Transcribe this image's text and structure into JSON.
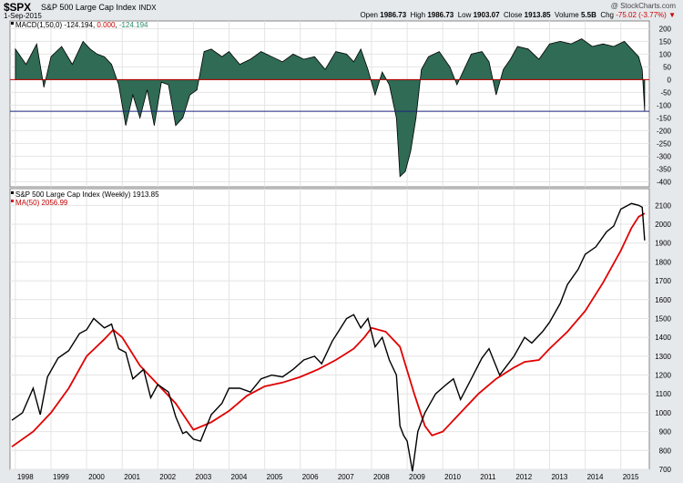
{
  "header": {
    "symbol": "$SPX",
    "name": "S&P 500 Large Cap Index",
    "exchange": "INDX",
    "date": "1-Sep-2015",
    "brand": "@ StockCharts.com",
    "open_label": "Open",
    "open": "1986.73",
    "high_label": "High",
    "high": "1986.73",
    "low_label": "Low",
    "low": "1903.07",
    "close_label": "Close",
    "close": "1913.85",
    "volume_label": "Volume",
    "volume": "5.5B",
    "chg_label": "Chg",
    "chg": "-75.02 (-3.77%)",
    "chg_arrow": "▼"
  },
  "colors": {
    "macd_fill": "#2f6b55",
    "price_line": "#000000",
    "ma_line": "#e00000",
    "zero_line": "#c00000",
    "signal_line": "#1a237e",
    "macd_value": "#c00000",
    "hist_value": "#2e8b6b"
  },
  "chart_data": [
    {
      "type": "area",
      "panel": "MACD",
      "legend": {
        "label": "MACD(1,50,0)",
        "value1": "-124.194",
        "value2": "0.000",
        "value3": "-124.194"
      },
      "ylim": [
        -420,
        230
      ],
      "yticks": [
        200,
        150,
        100,
        50,
        0,
        -50,
        -100,
        -150,
        -200,
        -250,
        -300,
        -350,
        -400
      ],
      "reference_lines": [
        0,
        -124.194
      ],
      "series": [
        {
          "name": "MACD(1,50,0)",
          "x": [
            1998.0,
            1998.3,
            1998.6,
            1998.8,
            1999.0,
            1999.3,
            1999.6,
            1999.9,
            2000.1,
            2000.3,
            2000.5,
            2000.7,
            2000.9,
            2001.1,
            2001.3,
            2001.5,
            2001.7,
            2001.9,
            2002.1,
            2002.3,
            2002.5,
            2002.7,
            2002.9,
            2003.1,
            2003.3,
            2003.5,
            2003.8,
            2004.0,
            2004.3,
            2004.6,
            2004.9,
            2005.2,
            2005.5,
            2005.8,
            2006.1,
            2006.4,
            2006.7,
            2007.0,
            2007.3,
            2007.5,
            2007.7,
            2007.9,
            2008.1,
            2008.3,
            2008.5,
            2008.7,
            2008.8,
            2008.95,
            2009.1,
            2009.25,
            2009.4,
            2009.6,
            2009.9,
            2010.2,
            2010.4,
            2010.6,
            2010.8,
            2011.1,
            2011.3,
            2011.5,
            2011.7,
            2011.9,
            2012.1,
            2012.4,
            2012.7,
            2013.0,
            2013.3,
            2013.6,
            2013.9,
            2014.2,
            2014.5,
            2014.8,
            2015.1,
            2015.3,
            2015.5,
            2015.6,
            2015.67
          ],
          "values": [
            120,
            60,
            140,
            -30,
            90,
            130,
            60,
            150,
            120,
            100,
            90,
            60,
            -20,
            -180,
            -60,
            -150,
            -40,
            -180,
            -10,
            -20,
            -180,
            -150,
            -60,
            -40,
            110,
            120,
            90,
            110,
            60,
            80,
            110,
            90,
            70,
            100,
            80,
            90,
            40,
            110,
            100,
            70,
            120,
            40,
            -60,
            30,
            -20,
            -150,
            -380,
            -360,
            -280,
            -150,
            40,
            90,
            110,
            50,
            -20,
            40,
            100,
            110,
            70,
            -60,
            40,
            80,
            130,
            120,
            80,
            140,
            150,
            140,
            160,
            130,
            140,
            130,
            150,
            120,
            90,
            40,
            -124
          ]
        }
      ]
    },
    {
      "type": "line",
      "panel": "Price",
      "legend": [
        {
          "label": "S&P 500 Large Cap Index (Weekly) 1913.85"
        },
        {
          "label": "MA(50) 2056.99"
        }
      ],
      "ylim": [
        700,
        2150
      ],
      "yticks": [
        700,
        800,
        900,
        1000,
        1100,
        1200,
        1300,
        1400,
        1500,
        1600,
        1700,
        1800,
        1900,
        2000,
        2100
      ],
      "xlim": [
        1997.85,
        2015.8
      ],
      "xticks": [
        "1998",
        "1999",
        "2000",
        "2001",
        "2002",
        "2003",
        "2004",
        "2005",
        "2006",
        "2007",
        "2008",
        "2009",
        "2010",
        "2011",
        "2012",
        "2013",
        "2014",
        "2015"
      ],
      "series": [
        {
          "name": "S&P 500 Large Cap Index (Weekly)",
          "x": [
            1997.9,
            1998.2,
            1998.5,
            1998.7,
            1998.9,
            1999.2,
            1999.5,
            1999.8,
            2000.0,
            2000.2,
            2000.5,
            2000.7,
            2000.9,
            2001.1,
            2001.3,
            2001.6,
            2001.8,
            2002.0,
            2002.3,
            2002.5,
            2002.7,
            2002.8,
            2003.0,
            2003.2,
            2003.5,
            2003.8,
            2004.0,
            2004.3,
            2004.6,
            2004.9,
            2005.2,
            2005.5,
            2005.8,
            2006.1,
            2006.4,
            2006.6,
            2006.9,
            2007.1,
            2007.3,
            2007.5,
            2007.7,
            2007.9,
            2008.1,
            2008.3,
            2008.5,
            2008.7,
            2008.8,
            2008.9,
            2009.0,
            2009.15,
            2009.3,
            2009.5,
            2009.8,
            2010.1,
            2010.3,
            2010.5,
            2010.8,
            2011.1,
            2011.3,
            2011.6,
            2011.8,
            2012.0,
            2012.3,
            2012.5,
            2012.8,
            2013.0,
            2013.3,
            2013.5,
            2013.8,
            2014.0,
            2014.3,
            2014.6,
            2014.8,
            2015.0,
            2015.3,
            2015.5,
            2015.6,
            2015.67
          ],
          "values": [
            960,
            1000,
            1130,
            990,
            1190,
            1290,
            1330,
            1420,
            1440,
            1500,
            1450,
            1470,
            1340,
            1320,
            1180,
            1230,
            1080,
            1150,
            1110,
            980,
            890,
            900,
            860,
            850,
            990,
            1050,
            1130,
            1130,
            1110,
            1180,
            1200,
            1190,
            1230,
            1280,
            1300,
            1260,
            1380,
            1440,
            1500,
            1520,
            1450,
            1500,
            1350,
            1400,
            1280,
            1200,
            930,
            880,
            850,
            690,
            900,
            1000,
            1100,
            1150,
            1180,
            1070,
            1180,
            1290,
            1340,
            1200,
            1250,
            1300,
            1400,
            1370,
            1430,
            1480,
            1580,
            1680,
            1760,
            1840,
            1880,
            1960,
            1990,
            2080,
            2110,
            2100,
            2090,
            1914
          ]
        },
        {
          "name": "MA(50)",
          "x": [
            1997.9,
            1998.5,
            1999.0,
            1999.5,
            2000.0,
            2000.5,
            2000.75,
            2001.0,
            2001.5,
            2002.0,
            2002.5,
            2003.0,
            2003.5,
            2004.0,
            2004.5,
            2005.0,
            2005.5,
            2006.0,
            2006.5,
            2007.0,
            2007.5,
            2007.8,
            2008.0,
            2008.4,
            2008.8,
            2009.2,
            2009.5,
            2009.7,
            2010.0,
            2010.5,
            2011.0,
            2011.5,
            2012.0,
            2012.3,
            2012.7,
            2013.0,
            2013.5,
            2014.0,
            2014.5,
            2015.0,
            2015.3,
            2015.5,
            2015.67
          ],
          "values": [
            820,
            900,
            1000,
            1130,
            1300,
            1390,
            1440,
            1400,
            1250,
            1150,
            1050,
            910,
            950,
            1010,
            1090,
            1140,
            1160,
            1190,
            1230,
            1280,
            1340,
            1400,
            1450,
            1430,
            1350,
            1100,
            930,
            880,
            900,
            1000,
            1100,
            1180,
            1240,
            1270,
            1280,
            1340,
            1430,
            1540,
            1690,
            1860,
            1980,
            2040,
            2057
          ]
        }
      ]
    }
  ]
}
